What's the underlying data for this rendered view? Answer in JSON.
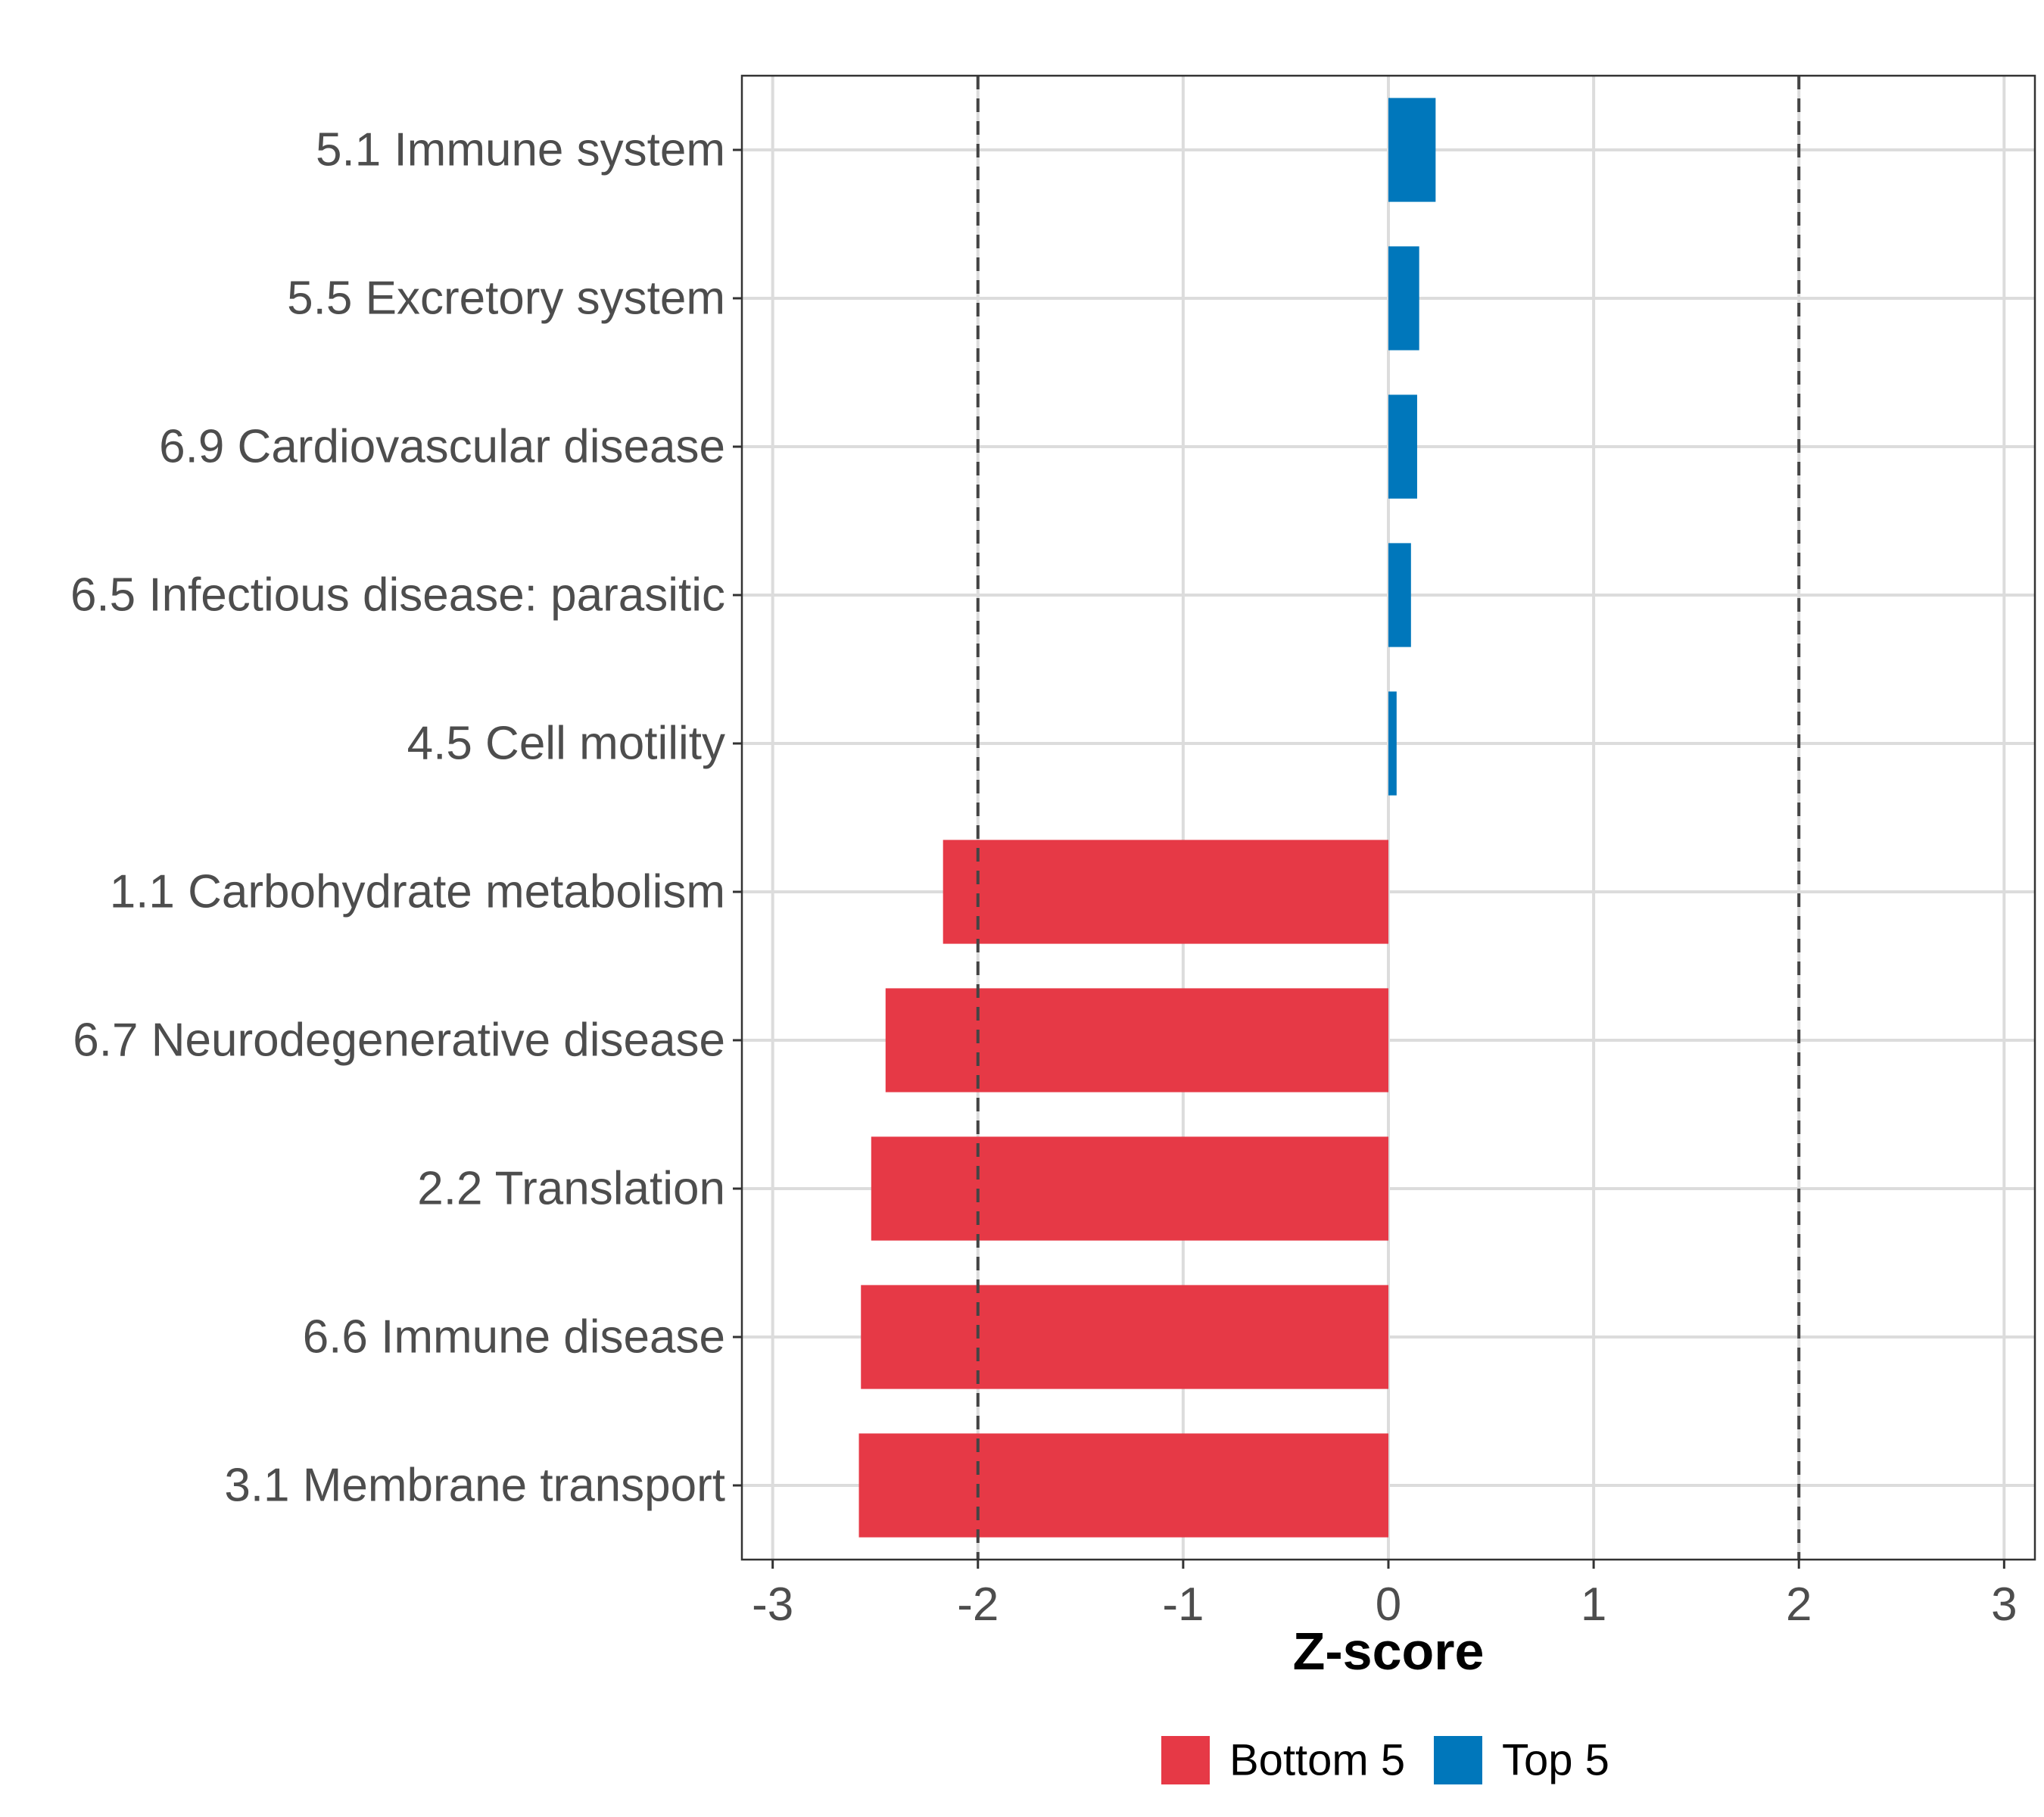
{
  "chart_data": {
    "type": "bar",
    "orientation": "horizontal",
    "title": "",
    "xlabel": "Z-score",
    "ylabel": "",
    "xlim": [
      -3.15,
      3.15
    ],
    "xticks": [
      -3,
      -2,
      -1,
      0,
      1,
      2,
      3
    ],
    "xtick_labels": [
      "-3",
      "-2",
      "-1",
      "0",
      "1",
      "2",
      "3"
    ],
    "reference_lines": [
      -2,
      2
    ],
    "grid": true,
    "categories": [
      "5.1 Immune system",
      "5.5 Excretory system",
      "6.9 Cardiovascular disease",
      "6.5 Infectious disease: parasitic",
      "4.5 Cell motility",
      "1.1 Carbohydrate metabolism",
      "6.7 Neurodegenerative disease",
      "2.2 Translation",
      "6.6 Immune disease",
      "3.1 Membrane transport"
    ],
    "values": [
      0.23,
      0.15,
      0.14,
      0.11,
      0.04,
      -2.17,
      -2.45,
      -2.52,
      -2.57,
      -2.58
    ],
    "groups": [
      "Top 5",
      "Top 5",
      "Top 5",
      "Top 5",
      "Top 5",
      "Bottom 5",
      "Bottom 5",
      "Bottom 5",
      "Bottom 5",
      "Bottom 5"
    ],
    "legend": {
      "position": "bottom",
      "entries": [
        {
          "label": "Bottom 5",
          "color": "#E63946"
        },
        {
          "label": "Top 5",
          "color": "#0077BB"
        }
      ]
    }
  }
}
